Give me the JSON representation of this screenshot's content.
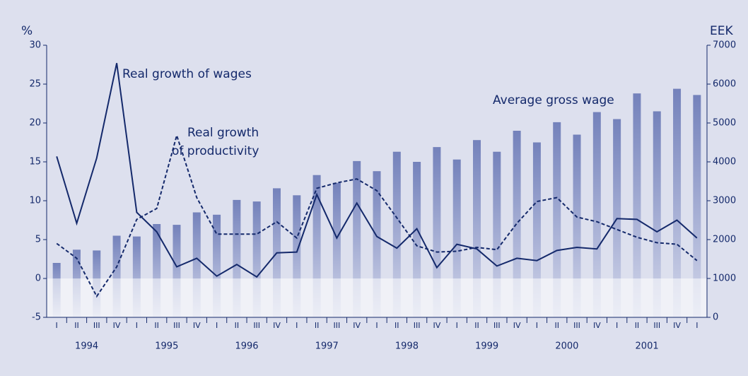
{
  "chart_data": {
    "type": "bar",
    "y_unit": "%",
    "y2_unit": "EEK",
    "categories": [
      "I",
      "II",
      "III",
      "IV",
      "I",
      "II",
      "III",
      "IV",
      "I",
      "II",
      "III",
      "IV",
      "I",
      "II",
      "III",
      "IV",
      "I",
      "II",
      "III",
      "IV",
      "I",
      "II",
      "III",
      "IV",
      "I",
      "II",
      "III",
      "IV",
      "I",
      "II",
      "III",
      "IV",
      "I"
    ],
    "years": [
      "1994",
      "1995",
      "1996",
      "1997",
      "1998",
      "1999",
      "2000",
      "2001"
    ],
    "ylim": [
      -5,
      30
    ],
    "yticks": [
      -5,
      0,
      5,
      10,
      15,
      20,
      25,
      30
    ],
    "y2lim": [
      0,
      7000
    ],
    "y2ticks": [
      0,
      1000,
      2000,
      3000,
      4000,
      5000,
      6000,
      7000
    ],
    "series": [
      {
        "name": "Average gross wage",
        "type": "bar",
        "axis": "y2",
        "color": "#7f8bbf",
        "values": [
          1400,
          1740,
          1720,
          2100,
          2080,
          2400,
          2380,
          2700,
          2640,
          3020,
          2980,
          3320,
          3140,
          3660,
          3460,
          4020,
          3760,
          4260,
          4000,
          4380,
          4060,
          4560,
          4260,
          4800,
          4500,
          5020,
          4700,
          5280,
          5100,
          5760,
          5300,
          5880,
          5720
        ]
      },
      {
        "name": "Real growth of wages",
        "type": "line",
        "color": "#14296b",
        "values": [
          15.7,
          7.1,
          15.5,
          27.7,
          8.5,
          6.0,
          1.5,
          2.6,
          0.3,
          1.8,
          0.2,
          3.3,
          3.4,
          10.8,
          5.2,
          9.7,
          5.4,
          3.9,
          6.4,
          1.4,
          4.4,
          3.8,
          1.6,
          2.6,
          2.3,
          3.6,
          4.0,
          3.8,
          7.7,
          7.6,
          6.0,
          7.5,
          5.2
        ]
      },
      {
        "type": "line",
        "dashed": true,
        "color": "#14296b",
        "values": [
          4.5,
          2.6,
          -2.3,
          1.5,
          7.6,
          9.0,
          18.4,
          10.4,
          5.7,
          5.7,
          5.7,
          7.3,
          5.2,
          11.6,
          12.3,
          12.8,
          11.3,
          7.8,
          4.2,
          3.4,
          3.5,
          4.0,
          3.7,
          7.1,
          9.9,
          10.4,
          7.9,
          7.3,
          6.3,
          5.3,
          4.6,
          4.4,
          2.3
        ]
      }
    ],
    "annotations": [
      "Real growth",
      "of productivity"
    ]
  }
}
